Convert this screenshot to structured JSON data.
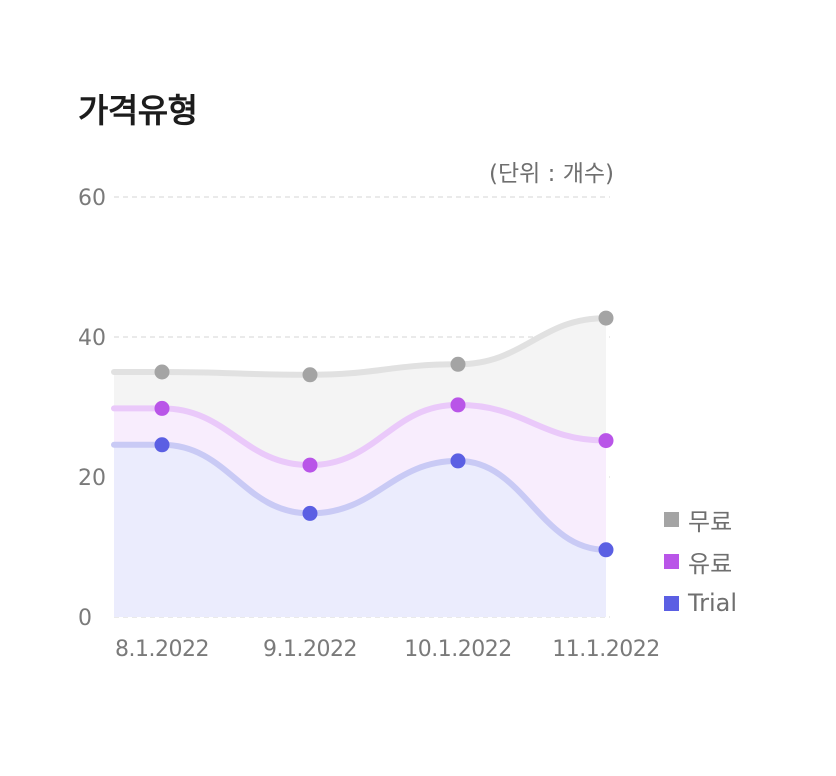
{
  "title": "가격유형",
  "unit_label": "(단위 : 개수)",
  "chart_data": {
    "type": "area",
    "title": "가격유형",
    "categories": [
      "8.1.2022",
      "9.1.2022",
      "10.1.2022",
      "11.1.2022"
    ],
    "series": [
      {
        "name": "무료",
        "values": [
          35,
          34.6,
          36.1,
          42.7
        ],
        "color": "#a4a4a4",
        "line_color": "#e1e1e1",
        "fill_color": "#f4f4f4"
      },
      {
        "name": "유료",
        "values": [
          29.8,
          21.7,
          30.3,
          25.2
        ],
        "color": "#b955e8",
        "line_color": "#eac9fa",
        "fill_color": "#f8edfd"
      },
      {
        "name": "Trial",
        "values": [
          24.6,
          14.8,
          22.3,
          9.6
        ],
        "color": "#5b5fe3",
        "line_color": "#c9caf5",
        "fill_color": "#ebecfd"
      }
    ],
    "y_ticks": [
      "0",
      "20",
      "40",
      "60"
    ],
    "ylim": [
      0,
      60
    ],
    "grid": true,
    "legend_position": "right"
  }
}
